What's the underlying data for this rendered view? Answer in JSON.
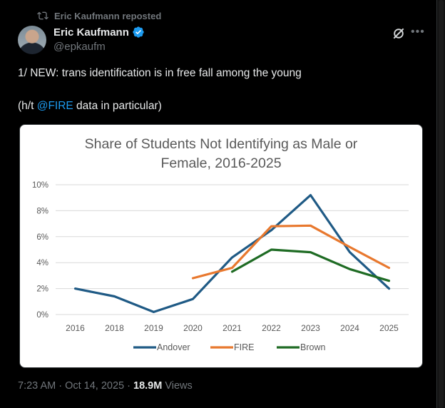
{
  "repost": {
    "text": "Eric Kaufmann reposted"
  },
  "author": {
    "name": "Eric Kaufmann",
    "handle": "@epkaufm"
  },
  "post": {
    "line1": "1/ NEW: trans identification is in free fall among the young",
    "line2_prefix": "(h/t ",
    "line2_mention": "@FIRE",
    "line2_suffix": " data in particular)"
  },
  "meta": {
    "time": "7:23 AM",
    "sep1": " · ",
    "date": "Oct 14, 2025",
    "sep2": " · ",
    "views_count": "18.9M",
    "views_label": " Views"
  },
  "icons": {
    "repost": "repost-icon",
    "verified": "verified-badge-icon",
    "grok": "grok-icon",
    "more": "more-icon"
  },
  "colors": {
    "accent": "#1d9bf0",
    "andover": "#1f5a85",
    "fire": "#e8782e",
    "brown": "#1e6b23"
  },
  "chart_data": {
    "type": "line",
    "title_line1": "Share of Students Not Identifying as Male or",
    "title_line2": "Female, 2016-2025",
    "categories": [
      "2016",
      "2018",
      "2019",
      "2020",
      "2021",
      "2022",
      "2023",
      "2024",
      "2025"
    ],
    "y_ticks": [
      "0%",
      "2%",
      "4%",
      "6%",
      "8%",
      "10%"
    ],
    "ylim": [
      0,
      10
    ],
    "grid": true,
    "legend": "bottom",
    "series": [
      {
        "name": "Andover",
        "color": "#1f5a85",
        "values": [
          2.0,
          1.4,
          0.2,
          1.2,
          4.4,
          6.5,
          9.2,
          4.8,
          2.0
        ]
      },
      {
        "name": "FIRE",
        "color": "#e8782e",
        "values": [
          null,
          null,
          null,
          2.8,
          3.6,
          6.8,
          6.85,
          5.2,
          3.6
        ]
      },
      {
        "name": "Brown",
        "color": "#1e6b23",
        "values": [
          null,
          null,
          null,
          null,
          3.3,
          5.0,
          4.8,
          3.5,
          2.6
        ]
      }
    ]
  }
}
